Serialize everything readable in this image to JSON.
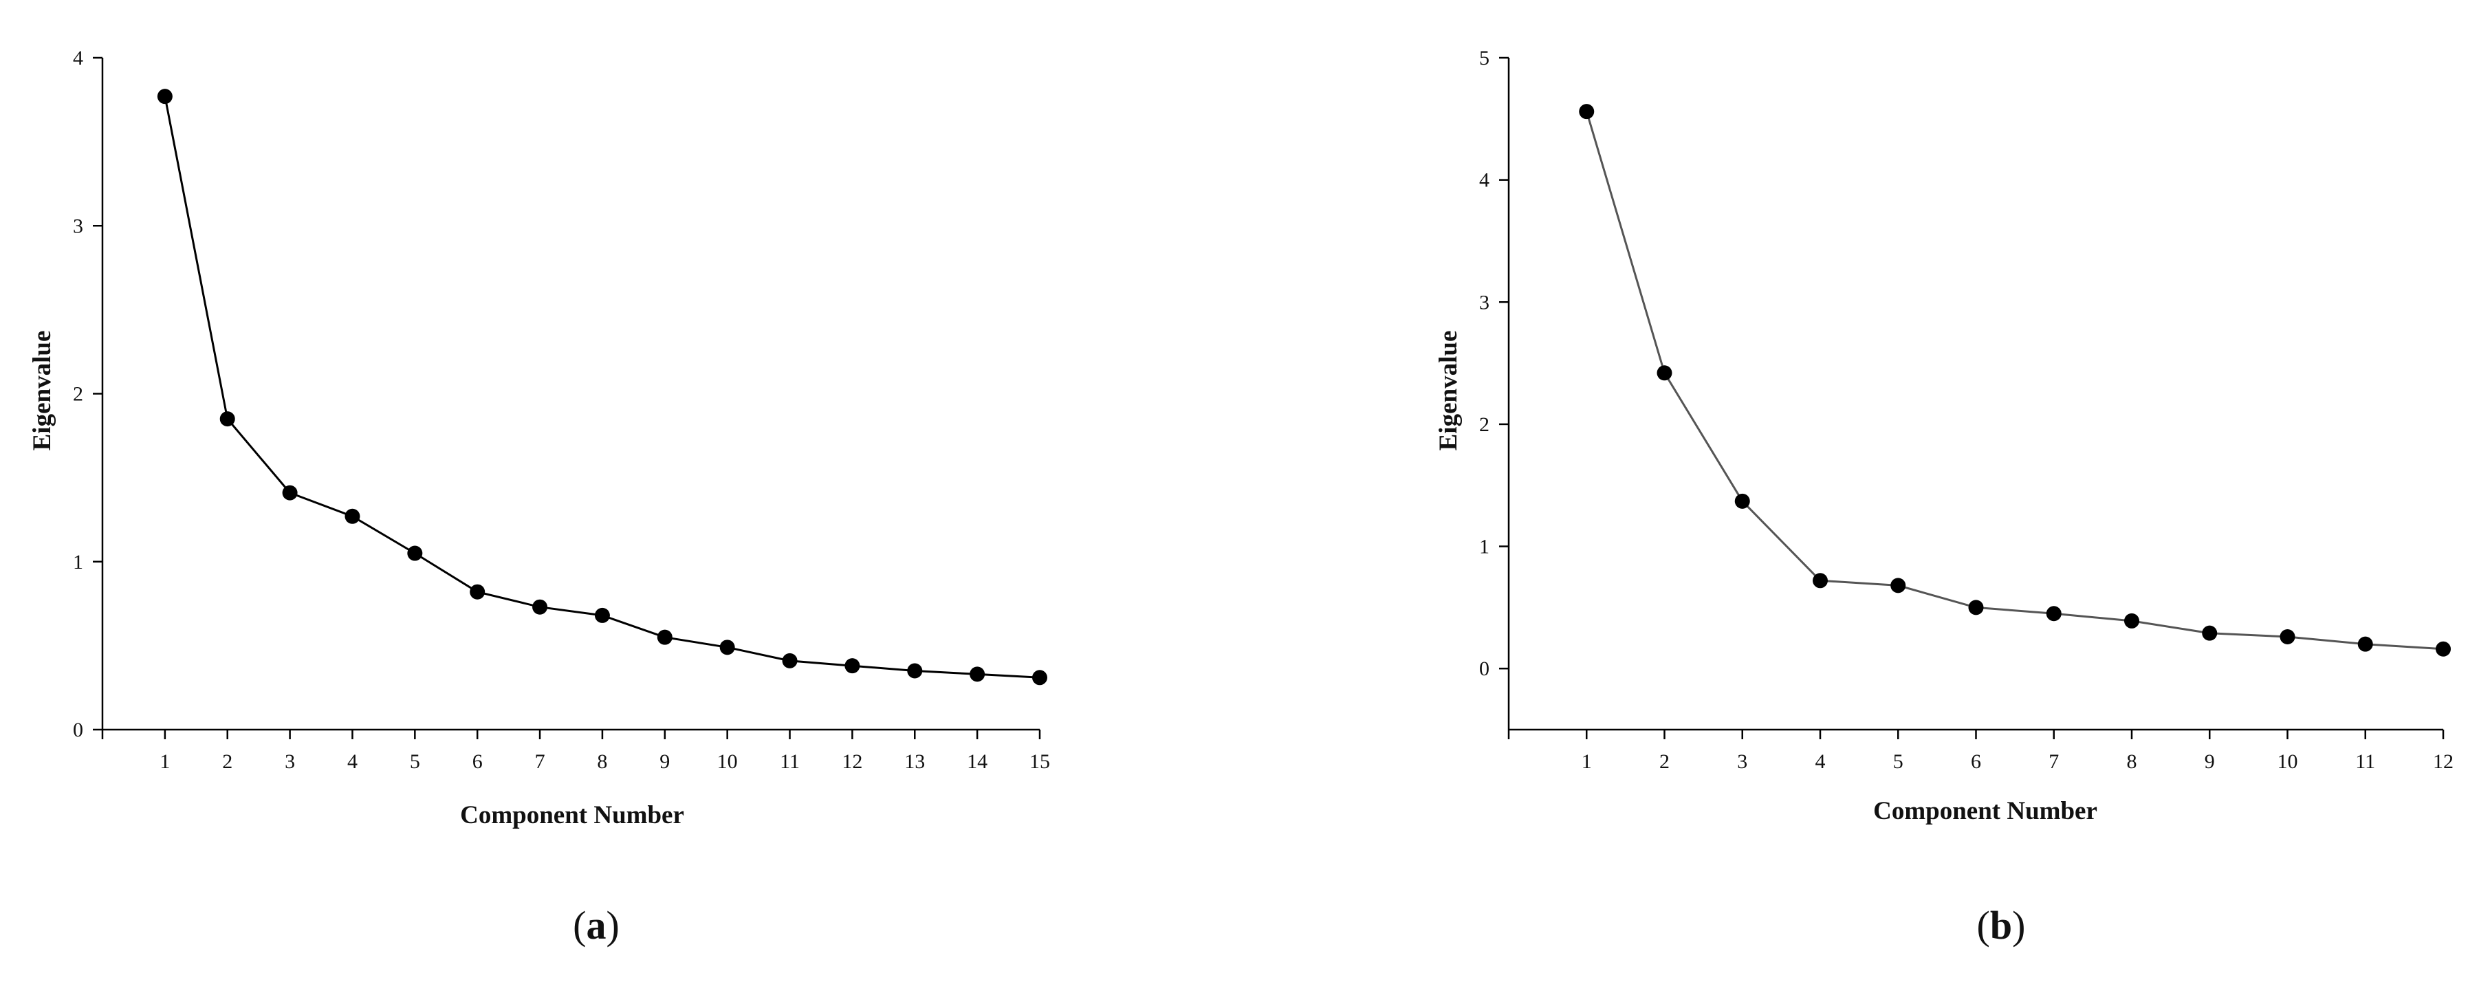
{
  "figure": {
    "panels": [
      {
        "id": "a",
        "label_open": "(",
        "label_letter": "a",
        "label_close": ")"
      },
      {
        "id": "b",
        "label_open": "(",
        "label_letter": "b",
        "label_close": ")"
      }
    ]
  },
  "colors": {
    "line_a": "#000000",
    "line_b": "#555555",
    "marker": "#000000",
    "axis": "#000000"
  },
  "chart_data": [
    {
      "type": "line",
      "panel": "a",
      "title": "",
      "xlabel": "Component Number",
      "ylabel": "Eigenvalue",
      "xlim": [
        0,
        15
      ],
      "ylim": [
        0,
        4
      ],
      "xticks": [
        1,
        2,
        3,
        4,
        5,
        6,
        7,
        8,
        9,
        10,
        11,
        12,
        13,
        14,
        15
      ],
      "yticks": [
        0,
        1,
        2,
        3,
        4
      ],
      "markers": "filled-circle",
      "grid": false,
      "x": [
        1,
        2,
        3,
        4,
        5,
        6,
        7,
        8,
        9,
        10,
        11,
        12,
        13,
        14,
        15
      ],
      "series": [
        {
          "values": [
            3.77,
            1.85,
            1.41,
            1.27,
            1.05,
            0.82,
            0.73,
            0.68,
            0.55,
            0.49,
            0.41,
            0.38,
            0.35,
            0.33,
            0.31
          ]
        }
      ]
    },
    {
      "type": "line",
      "panel": "b",
      "title": "",
      "xlabel": "Component Number",
      "ylabel": "Eigenvalue",
      "xlim": [
        0,
        12
      ],
      "ylim": [
        -0.5,
        5
      ],
      "xticks": [
        1,
        2,
        3,
        4,
        5,
        6,
        7,
        8,
        9,
        10,
        11,
        12
      ],
      "yticks": [
        0,
        1,
        2,
        3,
        4,
        5
      ],
      "markers": "filled-circle",
      "grid": false,
      "x": [
        1,
        2,
        3,
        4,
        5,
        6,
        7,
        8,
        9,
        10,
        11,
        12
      ],
      "series": [
        {
          "values": [
            4.56,
            2.42,
            1.37,
            0.72,
            0.68,
            0.5,
            0.45,
            0.39,
            0.29,
            0.26,
            0.2,
            0.16
          ]
        }
      ]
    }
  ]
}
